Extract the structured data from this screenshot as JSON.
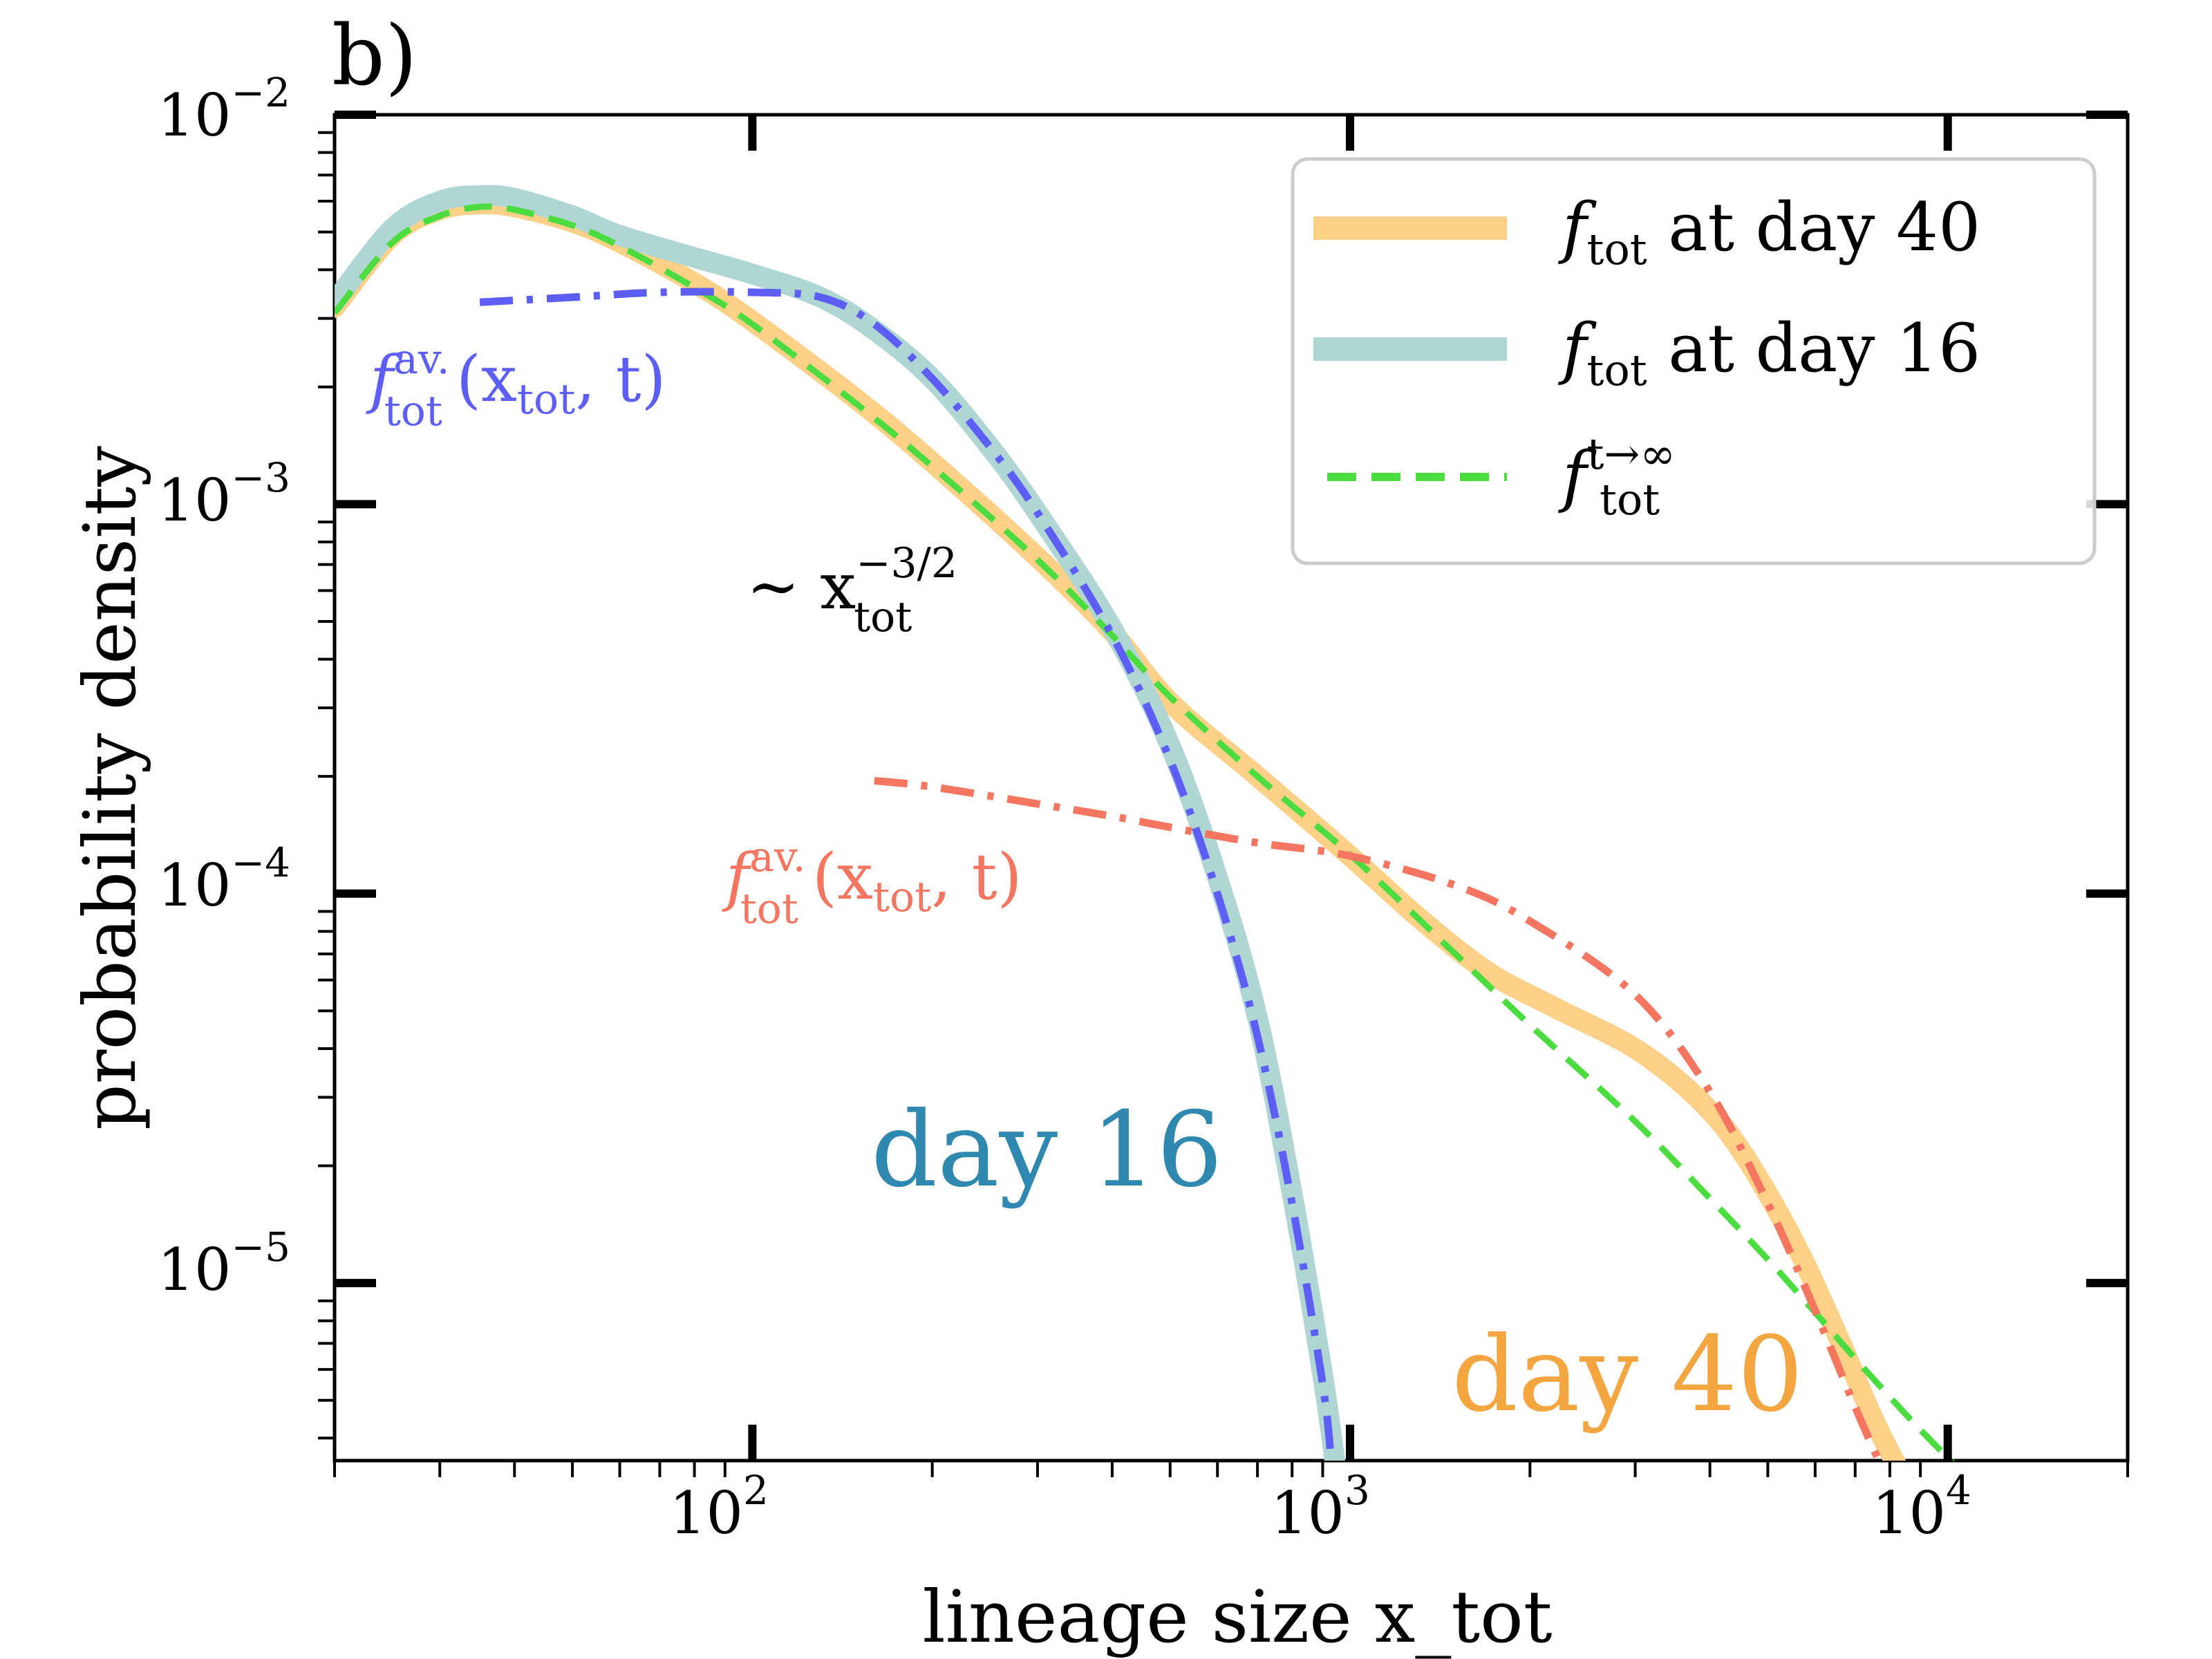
{
  "chart_data": {
    "type": "line",
    "panel_label": "b)",
    "xlabel": "lineage size x_tot",
    "ylabel": "probability density",
    "xscale": "log",
    "yscale": "log",
    "xlim": [
      20,
      20000
    ],
    "ylim": [
      3.5e-06,
      0.01
    ],
    "x_ticks": [
      {
        "base": "10",
        "exp": "2"
      },
      {
        "base": "10",
        "exp": "3"
      },
      {
        "base": "10",
        "exp": "4"
      }
    ],
    "y_ticks": [
      {
        "base": "10",
        "exp": "−2"
      },
      {
        "base": "10",
        "exp": "−3"
      },
      {
        "base": "10",
        "exp": "−4"
      },
      {
        "base": "10",
        "exp": "−5"
      }
    ],
    "x_tick_values": [
      100,
      1000,
      10000
    ],
    "y_tick_values": [
      0.01,
      0.001,
      0.0001,
      1e-05
    ],
    "legend": {
      "position": "top-right",
      "entries": [
        {
          "main": "f",
          "sub": "tot",
          "rest": " at day 40",
          "color": "#fdd088",
          "style": "solid-thick"
        },
        {
          "main": "f",
          "sub": "tot",
          "rest": " at day 16",
          "color": "#b0d6d3",
          "style": "solid-thick"
        },
        {
          "main": "f",
          "sub": "tot",
          "sup": "t→∞",
          "color": "#4bdd3f",
          "style": "dashed"
        }
      ]
    },
    "annotations": {
      "blue_fit": {
        "f": "f",
        "sup": "av.",
        "sub": "tot",
        "args": "(x",
        "args_sub": "tot",
        "args_end": ", t)",
        "color": "#5d5ef5"
      },
      "red_fit": {
        "f": "f",
        "sup": "av.",
        "sub": "tot",
        "args": "(x",
        "args_sub": "tot",
        "args_end": ", t)",
        "color": "#f47560"
      },
      "power_law": {
        "tilde": "∼ x",
        "sup": "−3/2",
        "sub": "tot",
        "color": "#000000"
      },
      "day16_label": {
        "text": "day 16",
        "color": "#2f88b0"
      },
      "day40_label": {
        "text": "day 40",
        "color": "#f3a540"
      }
    },
    "series": [
      {
        "name": "f_tot at day 40",
        "color": "#fdd088",
        "x": [
          20,
          25,
          30,
          35,
          40,
          50,
          60,
          80,
          100,
          150,
          200,
          300,
          400,
          500,
          700,
          1000,
          1300,
          1700,
          2200,
          3000,
          3800,
          4500,
          5500,
          6500,
          7500,
          8300
        ],
        "y": [
          0.0032,
          0.0049,
          0.0057,
          0.0059,
          0.0058,
          0.0053,
          0.0047,
          0.0037,
          0.00295,
          0.00185,
          0.00128,
          0.00073,
          0.00047,
          0.00031,
          0.0002,
          0.000125,
          8.7e-05,
          6.3e-05,
          5.1e-05,
          4e-05,
          3e-05,
          2.2e-05,
          1.3e-05,
          7.5e-06,
          4.5e-06,
          3.3e-06
        ]
      },
      {
        "name": "f_tot at day 16",
        "color": "#b0d6d3",
        "x": [
          20,
          25,
          30,
          35,
          40,
          50,
          60,
          80,
          100,
          130,
          160,
          200,
          250,
          300,
          400,
          500,
          600,
          700,
          800,
          900,
          950
        ],
        "y": [
          0.0033,
          0.0051,
          0.006,
          0.0062,
          0.0061,
          0.0055,
          0.0049,
          0.0043,
          0.0039,
          0.0034,
          0.0028,
          0.0021,
          0.0014,
          0.00095,
          0.00048,
          0.00024,
          0.00011,
          4.8e-05,
          1.7e-05,
          5.8e-06,
          3.2e-06
        ]
      },
      {
        "name": "f_tot^{t→∞}",
        "color": "#4bdd3f",
        "x": [
          20,
          25,
          30,
          35,
          40,
          50,
          60,
          80,
          100,
          150,
          200,
          300,
          400,
          500,
          700,
          1000,
          1500,
          2000,
          3000,
          4000,
          5000,
          6000,
          7000,
          8000,
          9000,
          10500
        ],
        "y": [
          0.0031,
          0.0047,
          0.0055,
          0.0058,
          0.0057,
          0.0052,
          0.0046,
          0.0036,
          0.0029,
          0.0018,
          0.00125,
          0.00072,
          0.00046,
          0.00032,
          0.0002,
          0.000126,
          7e-05,
          4.6e-05,
          2.6e-05,
          1.65e-05,
          1.15e-05,
          8.4e-06,
          6.4e-06,
          5.1e-06,
          4.2e-06,
          3.3e-06
        ]
      },
      {
        "name": "f_tot^{av.}(x_tot, t) blue",
        "color": "#5d5ef5",
        "x": [
          35,
          50,
          70,
          100,
          130,
          160,
          200,
          250,
          300,
          400,
          500,
          600,
          700,
          800,
          900,
          930
        ],
        "y": [
          0.0033,
          0.0034,
          0.0035,
          0.0035,
          0.0034,
          0.0029,
          0.0021,
          0.0014,
          0.00095,
          0.00046,
          0.00022,
          0.0001,
          4.3e-05,
          1.6e-05,
          5.5e-06,
          3.5e-06
        ]
      },
      {
        "name": "f_tot^{av.}(x_tot, t) red",
        "color": "#f47560",
        "x": [
          160,
          200,
          300,
          400,
          500,
          700,
          1000,
          1500,
          2000,
          3000,
          4000,
          5000,
          6000,
          7000,
          7800
        ],
        "y": [
          0.000195,
          0.000188,
          0.00017,
          0.000158,
          0.000148,
          0.000135,
          0.000125,
          0.000105,
          8.5e-05,
          5.5e-05,
          3.1e-05,
          1.6e-05,
          8.5e-06,
          4.8e-06,
          3.3e-06
        ]
      }
    ]
  }
}
